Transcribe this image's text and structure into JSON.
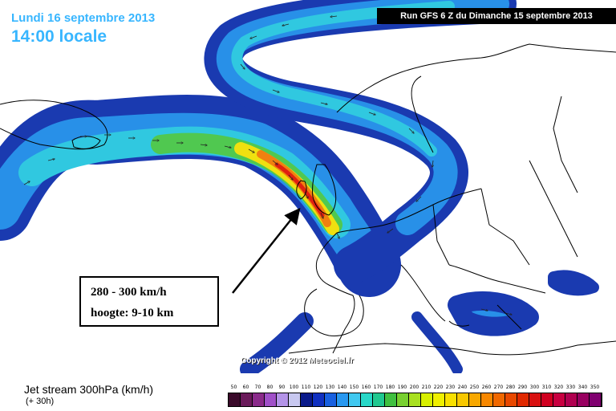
{
  "header": {
    "date_label": "Lundi 16 septembre 2013",
    "time_label": "14:00 locale",
    "run_label": "Run GFS 6 Z du Dimanche 15 septembre 2013"
  },
  "annotation": {
    "line1": "280 - 300 km/h",
    "line2": "hoogte: 9-10 km"
  },
  "copyright": "Copyright © 2012 Meteociel.fr",
  "legend": {
    "title": "Jet stream 300hPa (km/h)",
    "subtitle": "(+ 30h)",
    "scale_values": [
      "50",
      "60",
      "70",
      "80",
      "90",
      "100",
      "110",
      "120",
      "130",
      "140",
      "150",
      "160",
      "170",
      "180",
      "190",
      "200",
      "210",
      "220",
      "230",
      "240",
      "250",
      "260",
      "270",
      "280",
      "290",
      "300",
      "310",
      "320",
      "330",
      "340",
      "350"
    ],
    "scale_colors": [
      "#3a0a2a",
      "#6a1a5a",
      "#8a2a8a",
      "#a050c8",
      "#b494e8",
      "#c8c8f0",
      "#0a1a8a",
      "#1030c0",
      "#1860e0",
      "#2898f0",
      "#40c8f0",
      "#28d8c8",
      "#20c890",
      "#40c040",
      "#78d030",
      "#a8e020",
      "#d8f000",
      "#f0f000",
      "#f8e000",
      "#f8c800",
      "#f8a800",
      "#f88800",
      "#f06800",
      "#e84800",
      "#e02800",
      "#d81010",
      "#d00020",
      "#c80040",
      "#b00050",
      "#980060",
      "#800070"
    ]
  },
  "map": {
    "colors": {
      "sea": "#ffffff",
      "land_line": "#000000",
      "jet_outer": "#1a3ab0",
      "jet_mid": "#2890e8",
      "jet_cyan": "#30c8e0",
      "jet_green": "#50c850",
      "jet_yellow": "#f0e010",
      "jet_orange": "#f08010",
      "jet_red": "#e02010"
    }
  }
}
